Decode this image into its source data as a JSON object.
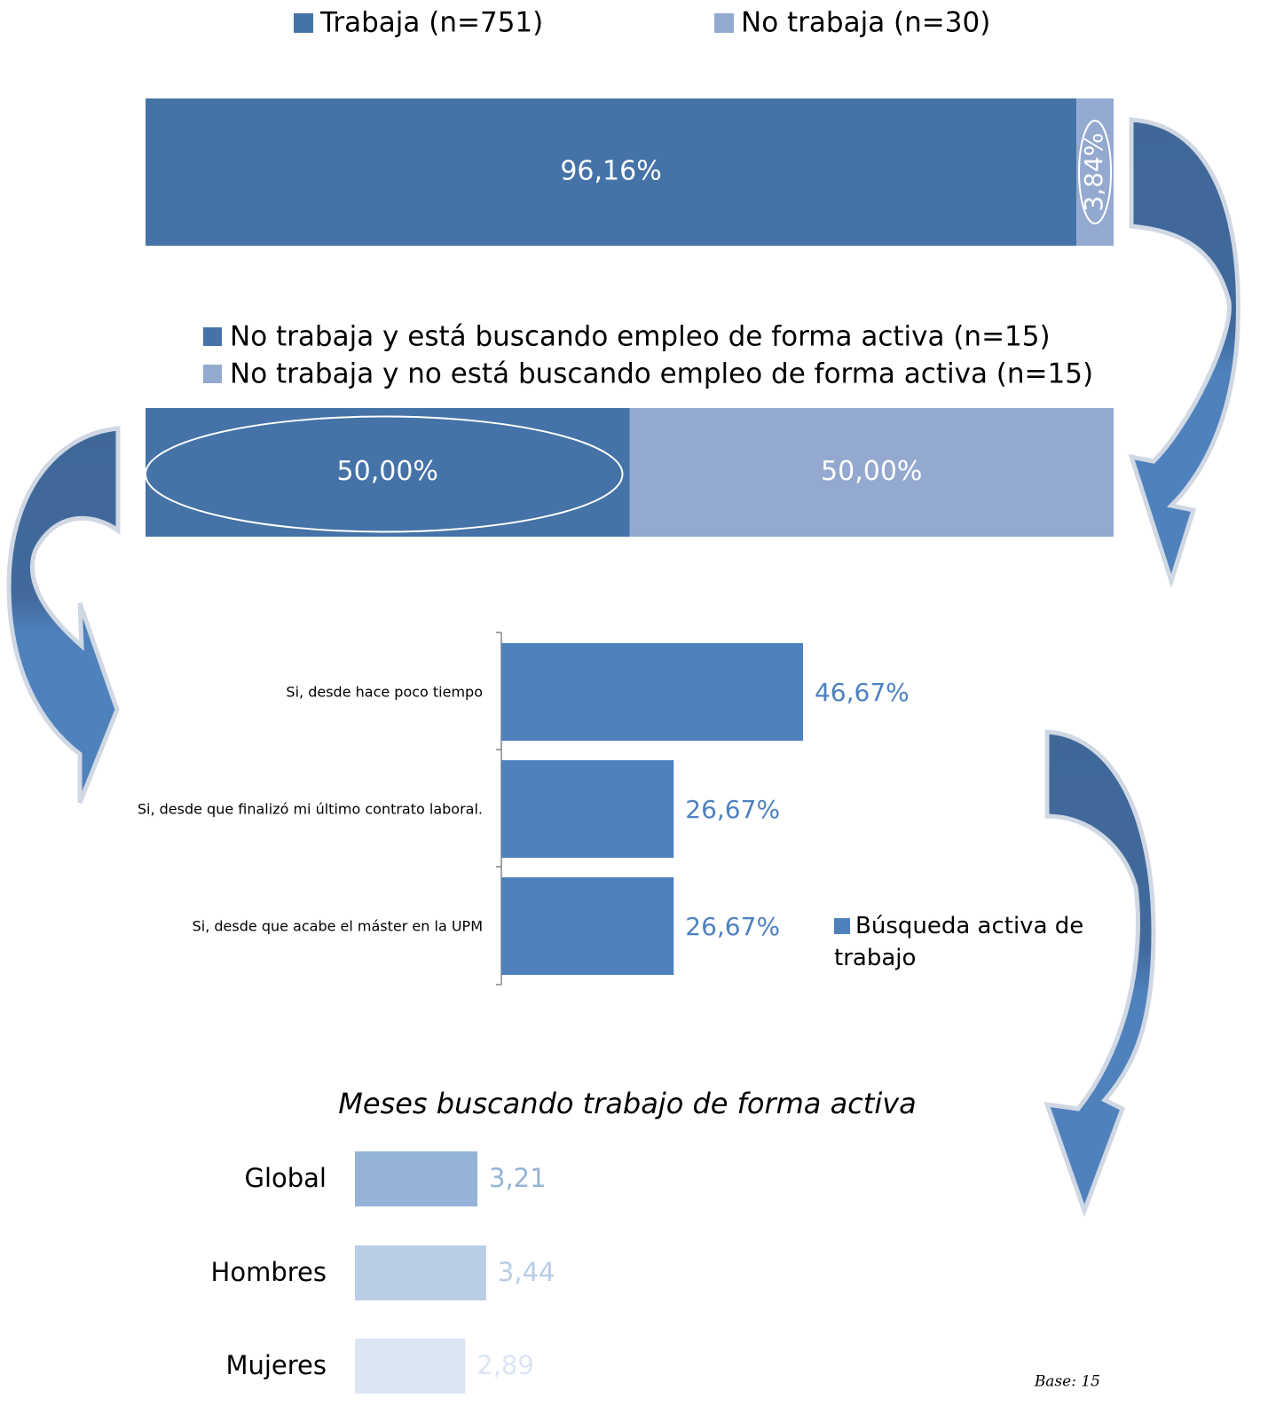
{
  "chart_data": [
    {
      "type": "bar",
      "orientation": "horizontal",
      "stacked": true,
      "categories": [
        null
      ],
      "series": [
        {
          "name": "Trabaja (n=751)",
          "color": "#4572a7",
          "values": [
            96.16
          ],
          "value_labels": [
            "96,16%"
          ]
        },
        {
          "name": "No trabaja (n=30)",
          "color": "#94a9d0",
          "values": [
            3.84
          ],
          "value_labels": [
            "3,84%"
          ]
        }
      ]
    },
    {
      "type": "bar",
      "orientation": "horizontal",
      "stacked": true,
      "categories": [
        null
      ],
      "series": [
        {
          "name": "No trabaja y está buscando empleo de forma activa (n=15)",
          "color": "#4572a7",
          "values": [
            50.0
          ],
          "value_labels": [
            "50,00%"
          ]
        },
        {
          "name": "No trabaja y no está buscando empleo de forma activa (n=15)",
          "color": "#94a9d0",
          "values": [
            50.0
          ],
          "value_labels": [
            "50,00%"
          ]
        }
      ]
    },
    {
      "type": "bar",
      "orientation": "horizontal",
      "stacked": false,
      "categories": [
        "Si, desde hace poco tiempo",
        "Si, desde que finalizó mi último contrato laboral.",
        "Si, desde que acabe el máster en la UPM"
      ],
      "series": [
        {
          "name": "Búsqueda activa de trabajo",
          "color": "#4f81bd",
          "values": [
            46.67,
            26.67,
            26.67
          ],
          "value_labels": [
            "46,67%",
            "26,67%",
            "26,67%"
          ]
        }
      ]
    },
    {
      "type": "bar",
      "orientation": "horizontal",
      "stacked": false,
      "title": "Meses buscando trabajo de forma activa",
      "categories": [
        "Global",
        "Hombres",
        "Mujeres"
      ],
      "values": [
        3.21,
        3.44,
        2.89
      ],
      "value_labels": [
        "3,21",
        "3,44",
        "2,89"
      ],
      "colors": [
        "#95b3d7",
        "#b9cde5",
        "#dce6f2"
      ],
      "note": "Base: 15"
    }
  ]
}
